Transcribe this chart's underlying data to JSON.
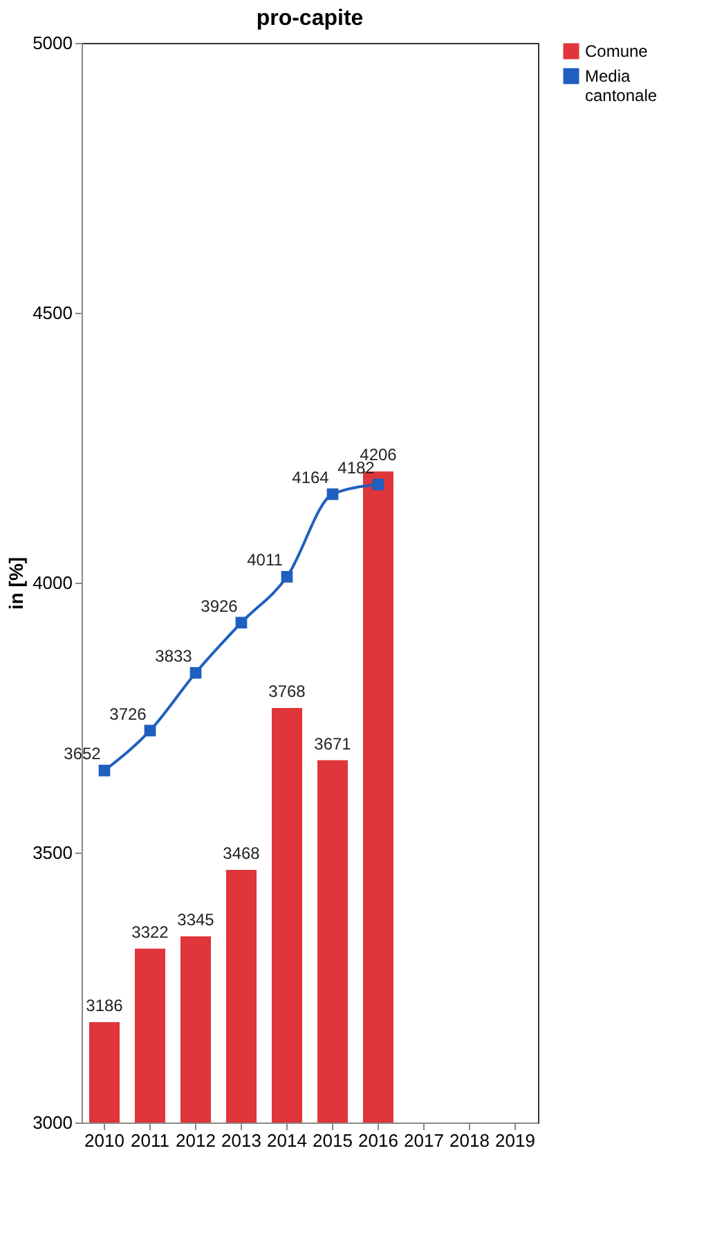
{
  "chart_data": {
    "type": "bar",
    "title": "pro-capite",
    "ylabel": "in [%]",
    "categories": [
      "2010",
      "2011",
      "2012",
      "2013",
      "2014",
      "2015",
      "2016",
      "2017",
      "2018",
      "2019"
    ],
    "series": [
      {
        "name": "Comune",
        "color": "#e0353a",
        "values": [
          3186,
          3322,
          3345,
          3468,
          3768,
          3671,
          4206,
          null,
          null,
          null
        ]
      },
      {
        "name": "Media cantonale",
        "type": "line",
        "color": "#1f5fbf",
        "marker": "square",
        "values": [
          3652,
          3726,
          3833,
          3926,
          4011,
          4164,
          4182,
          null,
          null,
          null
        ]
      }
    ],
    "ylim": [
      3000,
      5000
    ],
    "yticks": [
      3000,
      3500,
      4000,
      4500,
      5000
    ],
    "data_labels": true,
    "legend": "right",
    "grid": false
  }
}
